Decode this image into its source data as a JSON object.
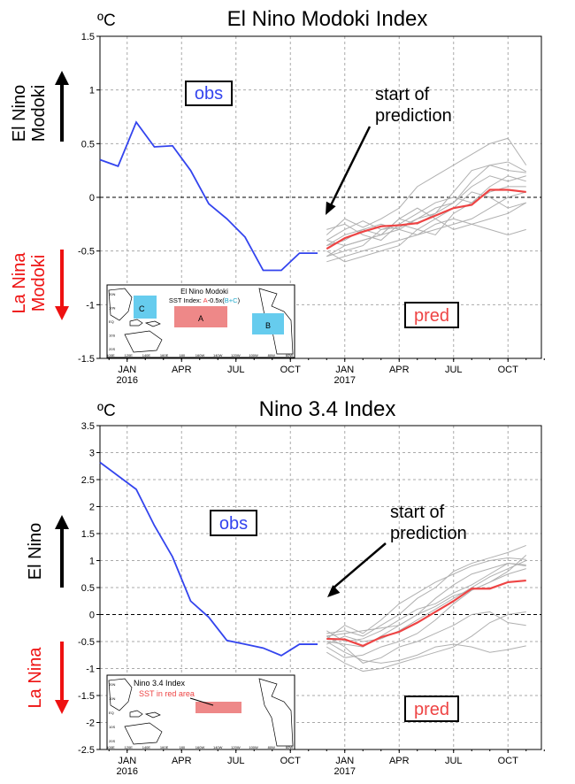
{
  "colors": {
    "obs": "#3344ee",
    "pred_mean": "#ee4444",
    "members": "#b0b0b0",
    "el_nino": "#000000",
    "la_nina": "#ee1111",
    "box_a": "#ee8888",
    "box_bc": "#66ccee"
  },
  "chart_data": [
    {
      "type": "line",
      "title": "El Nino Modoki Index",
      "unit": "ºC",
      "upper_label": [
        "El Nino",
        "Modoki"
      ],
      "lower_label": [
        "La Nina",
        "Modoki"
      ],
      "obs_label": "obs",
      "pred_label": "pred",
      "annotation": [
        "start of",
        "prediction"
      ],
      "ylim": [
        -1.5,
        1.5
      ],
      "y_ticks": [
        -1.5,
        -1,
        -0.5,
        0,
        0.5,
        1,
        1.5
      ],
      "y_tick_labels": [
        "-1.5",
        "-1",
        "-0.5",
        "0",
        "0.5",
        "1",
        "1.5"
      ],
      "x_ticks": [
        {
          "month": 1,
          "label": "JAN",
          "year": "2016"
        },
        {
          "month": 4,
          "label": "APR",
          "year": ""
        },
        {
          "month": 7,
          "label": "JUL",
          "year": ""
        },
        {
          "month": 10,
          "label": "OCT",
          "year": ""
        },
        {
          "month": 13,
          "label": "JAN",
          "year": "2017"
        },
        {
          "month": 16,
          "label": "APR",
          "year": ""
        },
        {
          "month": 19,
          "label": "JUL",
          "year": ""
        },
        {
          "month": 22,
          "label": "OCT",
          "year": ""
        }
      ],
      "observed": {
        "x": [
          -0.5,
          0.5,
          1.5,
          2.5,
          3.5,
          4.5,
          5.5,
          6.5,
          7.5,
          8.5,
          9.5,
          10.5,
          11.5
        ],
        "y": [
          0.35,
          0.29,
          0.7,
          0.47,
          0.48,
          0.25,
          -0.06,
          -0.2,
          -0.37,
          -0.68,
          -0.68,
          -0.52,
          -0.52
        ]
      },
      "prediction_x": [
        12,
        13,
        14,
        15,
        16,
        17,
        18,
        19,
        20,
        21,
        22,
        23
      ],
      "prediction_mean": [
        -0.48,
        -0.38,
        -0.32,
        -0.27,
        -0.26,
        -0.24,
        -0.17,
        -0.1,
        -0.07,
        0.07,
        0.07,
        0.05
      ],
      "ensemble": [
        [
          -0.4,
          -0.3,
          -0.22,
          -0.3,
          -0.28,
          -0.2,
          -0.15,
          -0.05,
          0.15,
          0.3,
          0.33,
          0.24
        ],
        [
          -0.35,
          -0.2,
          -0.28,
          -0.2,
          -0.1,
          0.1,
          0.2,
          0.3,
          0.4,
          0.5,
          0.55,
          0.3
        ],
        [
          -0.55,
          -0.45,
          -0.4,
          -0.35,
          -0.2,
          -0.25,
          -0.15,
          0.05,
          0.25,
          0.3,
          0.25,
          0.23
        ],
        [
          -0.6,
          -0.55,
          -0.5,
          -0.45,
          -0.4,
          -0.35,
          -0.3,
          -0.25,
          -0.2,
          -0.1,
          0.0,
          0.05
        ],
        [
          -0.45,
          -0.35,
          -0.3,
          -0.25,
          -0.3,
          -0.35,
          -0.25,
          -0.2,
          -0.25,
          -0.3,
          -0.35,
          -0.3
        ],
        [
          -0.3,
          -0.25,
          -0.35,
          -0.4,
          -0.25,
          -0.15,
          -0.05,
          0.0,
          -0.05,
          0.1,
          0.2,
          0.15
        ],
        [
          -0.5,
          -0.6,
          -0.55,
          -0.5,
          -0.45,
          -0.3,
          -0.2,
          -0.1,
          0.05,
          0.0,
          -0.1,
          -0.05
        ],
        [
          -0.4,
          -0.45,
          -0.4,
          -0.35,
          -0.2,
          -0.1,
          -0.2,
          -0.3,
          -0.25,
          -0.2,
          -0.15,
          -0.05
        ],
        [
          -0.55,
          -0.5,
          -0.45,
          -0.3,
          -0.25,
          -0.3,
          -0.35,
          -0.15,
          -0.05,
          0.05,
          0.1,
          0.1
        ],
        [
          -0.45,
          -0.4,
          -0.3,
          -0.35,
          -0.3,
          -0.2,
          -0.1,
          -0.05,
          0.1,
          0.2,
          0.15,
          0.2
        ]
      ],
      "map": {
        "title": "El Nino Modoki",
        "index_prefix": "SST Index: ",
        "index_a": "A",
        "index_mid": "-0.5x(",
        "index_bc": "B+C",
        "index_end": ")",
        "box_labels": [
          "A",
          "B",
          "C"
        ],
        "lat_labels": [
          "20N",
          "10N",
          "EQ",
          "10S",
          "20S"
        ],
        "lon_labels": [
          "100E",
          "120E",
          "140E",
          "160E",
          "180",
          "160W",
          "140W",
          "120W",
          "100W",
          "80W",
          "60W"
        ]
      }
    },
    {
      "type": "line",
      "title": "Nino 3.4 Index",
      "unit": "ºC",
      "upper_label": [
        "El Nino"
      ],
      "lower_label": [
        "La Nina"
      ],
      "obs_label": "obs",
      "pred_label": "pred",
      "annotation": [
        "start of",
        "prediction"
      ],
      "ylim": [
        -2.5,
        3.5
      ],
      "y_ticks": [
        -2.5,
        -2,
        -1.5,
        -1,
        -0.5,
        0,
        0.5,
        1,
        1.5,
        2,
        2.5,
        3,
        3.5
      ],
      "y_tick_labels": [
        "-2.5",
        "-2",
        "-1.5",
        "-1",
        "-0.5",
        "0",
        "0.5",
        "1",
        "1.5",
        "2",
        "2.5",
        "3",
        "3.5"
      ],
      "x_ticks": [
        {
          "month": 1,
          "label": "JAN",
          "year": "2016"
        },
        {
          "month": 4,
          "label": "APR",
          "year": ""
        },
        {
          "month": 7,
          "label": "JUL",
          "year": ""
        },
        {
          "month": 10,
          "label": "OCT",
          "year": ""
        },
        {
          "month": 13,
          "label": "JAN",
          "year": "2017"
        },
        {
          "month": 16,
          "label": "APR",
          "year": ""
        },
        {
          "month": 19,
          "label": "JUL",
          "year": ""
        },
        {
          "month": 22,
          "label": "OCT",
          "year": ""
        }
      ],
      "observed": {
        "x": [
          -0.5,
          0.5,
          1.5,
          2.5,
          3.5,
          4.5,
          5.5,
          6.5,
          7.5,
          8.5,
          9.5,
          10.5,
          11.5
        ],
        "y": [
          2.82,
          2.57,
          2.32,
          1.65,
          1.07,
          0.25,
          -0.05,
          -0.48,
          -0.55,
          -0.62,
          -0.76,
          -0.55,
          -0.55
        ]
      },
      "prediction_x": [
        12,
        13,
        14,
        15,
        16,
        17,
        18,
        19,
        20,
        21,
        22,
        23
      ],
      "prediction_mean": [
        -0.45,
        -0.46,
        -0.58,
        -0.42,
        -0.32,
        -0.15,
        0.05,
        0.25,
        0.48,
        0.48,
        0.6,
        0.63
      ],
      "ensemble": [
        [
          -0.35,
          -0.3,
          -0.4,
          -0.2,
          0.0,
          0.3,
          0.5,
          0.8,
          0.95,
          1.05,
          1.15,
          1.28
        ],
        [
          -0.45,
          -0.2,
          -0.35,
          -0.1,
          0.2,
          0.4,
          0.6,
          0.75,
          0.9,
          1.0,
          1.05,
          1.02
        ],
        [
          -0.5,
          -0.55,
          -0.6,
          -0.4,
          -0.2,
          0.0,
          0.3,
          0.55,
          0.75,
          0.85,
          0.95,
          0.9
        ],
        [
          -0.6,
          -0.8,
          -0.75,
          -0.6,
          -0.5,
          -0.35,
          -0.1,
          0.2,
          0.45,
          0.6,
          0.8,
          1.1
        ],
        [
          -0.4,
          -0.6,
          -0.9,
          -0.8,
          -0.6,
          -0.5,
          -0.35,
          -0.2,
          0.0,
          0.05,
          -0.15,
          -0.2
        ],
        [
          -0.7,
          -0.9,
          -1.05,
          -1.0,
          -0.9,
          -0.8,
          -0.7,
          -0.6,
          -0.4,
          -0.15,
          0.0,
          0.05
        ],
        [
          -0.55,
          -0.4,
          -0.5,
          -0.45,
          -0.3,
          -0.1,
          0.1,
          0.3,
          0.5,
          0.7,
          0.85,
          1.0
        ],
        [
          -0.3,
          -0.5,
          -0.45,
          -0.3,
          -0.1,
          0.1,
          0.2,
          0.4,
          0.55,
          0.75,
          0.95,
          0.92
        ],
        [
          -0.5,
          -0.7,
          -0.85,
          -0.9,
          -0.85,
          -0.75,
          -0.6,
          -0.55,
          -0.6,
          -0.7,
          -0.65,
          -0.58
        ],
        [
          -0.4,
          -0.35,
          -0.3,
          -0.25,
          -0.2,
          0.0,
          0.15,
          0.35,
          0.45,
          0.6,
          0.75,
          0.85
        ]
      ],
      "map": {
        "title": "Nino 3.4 Index",
        "subtitle": "SST in red area",
        "lat_labels": [
          "20N",
          "10N",
          "EQ",
          "10S",
          "20S"
        ],
        "lon_labels": [
          "100E",
          "120E",
          "140E",
          "160E",
          "180",
          "160W",
          "140W",
          "120W",
          "100W",
          "80W",
          "60W"
        ]
      }
    }
  ]
}
